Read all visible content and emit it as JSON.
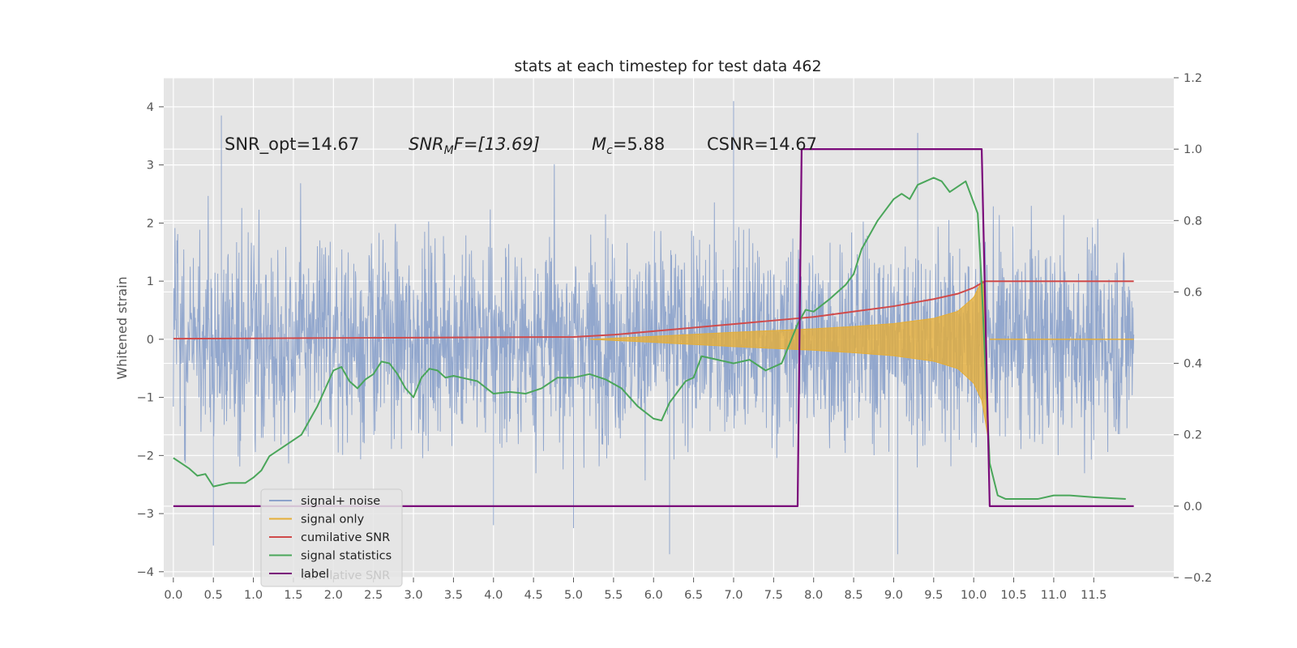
{
  "chart_data": {
    "type": "line",
    "title": "stats at each timestep for test data 462",
    "ylabel": "Whitened strain",
    "ylabel_right": "",
    "xlim": [
      -0.12,
      12.5
    ],
    "ylim": [
      -4.1,
      4.5
    ],
    "ylim_right": [
      -0.2,
      1.2
    ],
    "x_ticks": [
      "0.0",
      "0.5",
      "1.0",
      "1.5",
      "2.0",
      "2.5",
      "3.0",
      "3.5",
      "4.0",
      "4.5",
      "5.0",
      "5.5",
      "6.0",
      "6.5",
      "7.0",
      "7.5",
      "8.0",
      "8.5",
      "9.0",
      "9.5",
      "10.0",
      "10.5",
      "11.0",
      "11.5"
    ],
    "y_ticks": [
      "4",
      "3",
      "2",
      "1",
      "0",
      "−1",
      "−2",
      "−3",
      "−4"
    ],
    "y_ticks_right": [
      "1.2",
      "1.0",
      "0.8",
      "0.6",
      "0.4",
      "0.2",
      "0.0",
      "−0.2"
    ],
    "grid": true,
    "legend_position": "lower-left",
    "annotations": [
      {
        "id": "snr-opt",
        "text": "SNR_opt=14.67"
      },
      {
        "id": "snr-mf",
        "text": "SNR_MF=[13.69]",
        "base": "SNR",
        "sub": "M",
        "rest": "F=[13.69]"
      },
      {
        "id": "mc",
        "text": "M_c=5.88",
        "base": "M",
        "sub": "c",
        "rest": "=5.88"
      },
      {
        "id": "csnr",
        "text": "CSNR=14.67"
      }
    ],
    "series": [
      {
        "name": "signal+ noise",
        "axis": "left",
        "color": "#8da3cb",
        "description": "dense whitened strain noise between x=0 and x=12, amplitude mostly within ±2.5, peaks to about ±4",
        "x_range": [
          0.0,
          12.0
        ],
        "typical_amplitude": 2.2,
        "extreme_points": [
          [
            0.6,
            3.85
          ],
          [
            7.0,
            4.1
          ],
          [
            9.3,
            3.55
          ],
          [
            0.5,
            -3.55
          ],
          [
            6.2,
            -3.7
          ],
          [
            9.05,
            -3.7
          ],
          [
            4.0,
            -3.2
          ],
          [
            5.0,
            -3.25
          ]
        ]
      },
      {
        "name": "signal only",
        "axis": "left",
        "color": "#e5ae38",
        "description": "chirp envelope growing from zero near x=5.2 to about ±1.0 at x=10.1, then ringdown to zero",
        "envelope": [
          [
            5.2,
            0.0
          ],
          [
            6.0,
            0.05
          ],
          [
            7.0,
            0.12
          ],
          [
            8.0,
            0.18
          ],
          [
            8.5,
            0.22
          ],
          [
            9.0,
            0.27
          ],
          [
            9.5,
            0.36
          ],
          [
            9.8,
            0.48
          ],
          [
            10.0,
            0.72
          ],
          [
            10.1,
            1.0
          ],
          [
            10.15,
            -1.7
          ],
          [
            10.2,
            0.0
          ],
          [
            12.0,
            0.0
          ]
        ]
      },
      {
        "name": "cumilative SNR",
        "axis": "right",
        "color": "#d04a4a",
        "x": [
          0.0,
          1.0,
          2.0,
          3.0,
          4.0,
          5.0,
          5.5,
          6.0,
          6.5,
          7.0,
          7.5,
          8.0,
          8.5,
          9.0,
          9.5,
          9.8,
          10.0,
          10.1,
          10.15,
          12.0
        ],
        "y": [
          0.469,
          0.47,
          0.471,
          0.472,
          0.473,
          0.474,
          0.48,
          0.49,
          0.5,
          0.51,
          0.52,
          0.53,
          0.545,
          0.56,
          0.58,
          0.595,
          0.612,
          0.625,
          0.63,
          0.63
        ]
      },
      {
        "name": "signal statistics",
        "axis": "right",
        "color": "#4aa65a",
        "x": [
          0.0,
          0.1,
          0.2,
          0.3,
          0.4,
          0.5,
          0.7,
          0.9,
          1.0,
          1.1,
          1.2,
          1.4,
          1.6,
          1.8,
          2.0,
          2.1,
          2.2,
          2.3,
          2.4,
          2.5,
          2.6,
          2.7,
          2.8,
          2.9,
          3.0,
          3.1,
          3.2,
          3.3,
          3.4,
          3.5,
          3.6,
          3.8,
          4.0,
          4.2,
          4.4,
          4.6,
          4.8,
          5.0,
          5.2,
          5.4,
          5.6,
          5.8,
          6.0,
          6.1,
          6.2,
          6.4,
          6.5,
          6.6,
          6.8,
          7.0,
          7.2,
          7.4,
          7.5,
          7.6,
          7.8,
          7.9,
          8.0,
          8.2,
          8.3,
          8.4,
          8.5,
          8.6,
          8.8,
          9.0,
          9.1,
          9.2,
          9.3,
          9.4,
          9.5,
          9.6,
          9.7,
          9.8,
          9.9,
          10.0,
          10.05,
          10.1,
          10.2,
          10.3,
          10.4,
          10.5,
          10.8,
          11.0,
          11.2,
          11.5,
          11.9
        ],
        "y": [
          0.135,
          0.12,
          0.105,
          0.085,
          0.09,
          0.055,
          0.065,
          0.065,
          0.08,
          0.1,
          0.14,
          0.17,
          0.2,
          0.28,
          0.38,
          0.39,
          0.35,
          0.33,
          0.355,
          0.37,
          0.405,
          0.4,
          0.37,
          0.33,
          0.305,
          0.36,
          0.385,
          0.38,
          0.36,
          0.365,
          0.36,
          0.35,
          0.315,
          0.32,
          0.315,
          0.33,
          0.36,
          0.36,
          0.37,
          0.355,
          0.33,
          0.28,
          0.245,
          0.24,
          0.29,
          0.35,
          0.36,
          0.42,
          0.41,
          0.4,
          0.41,
          0.38,
          0.39,
          0.4,
          0.51,
          0.55,
          0.545,
          0.58,
          0.6,
          0.62,
          0.65,
          0.72,
          0.8,
          0.86,
          0.875,
          0.86,
          0.9,
          0.91,
          0.92,
          0.91,
          0.88,
          0.895,
          0.91,
          0.85,
          0.82,
          0.62,
          0.12,
          0.03,
          0.02,
          0.02,
          0.02,
          0.03,
          0.03,
          0.025,
          0.02
        ]
      },
      {
        "name": "label",
        "axis": "right",
        "color": "#7a0a7a",
        "x": [
          0.0,
          7.8,
          7.85,
          10.1,
          10.2,
          12.0
        ],
        "y": [
          0.0,
          0.0,
          1.0,
          1.0,
          0.0,
          0.0
        ]
      }
    ],
    "legend_entries": [
      "signal+ noise",
      "signal only",
      "cumilative SNR",
      "signal statistics",
      "label"
    ],
    "legend_ghost_text": "cumilative SNR"
  }
}
